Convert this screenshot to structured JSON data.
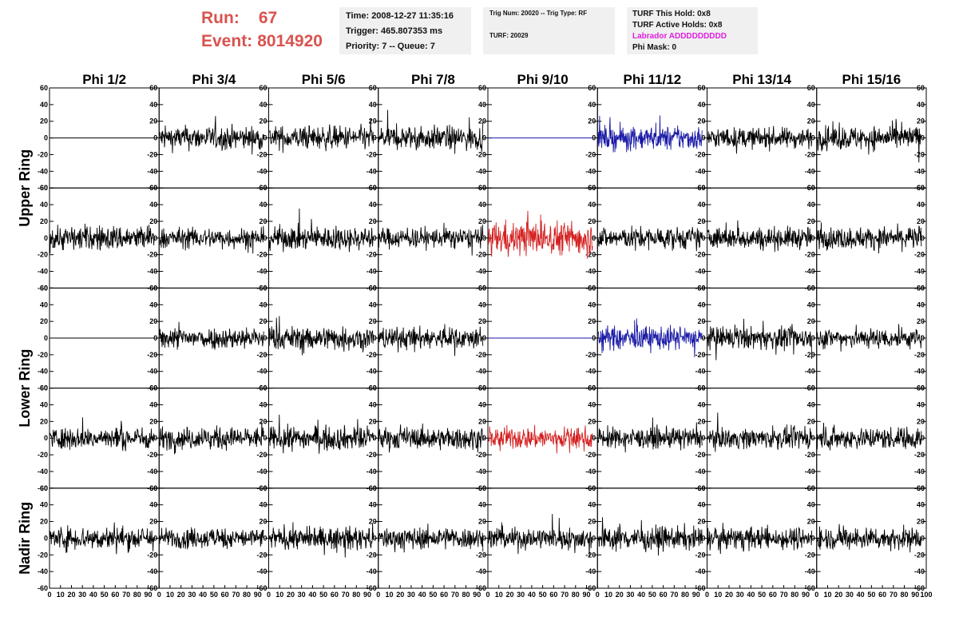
{
  "header": {
    "run_label": "Run:",
    "run_value": "67",
    "event_label": "Event:",
    "event_value": "8014920"
  },
  "info_time": {
    "time": "Time: 2008-12-27 11:35:16",
    "trigger": "Trigger: 465.807353 ms",
    "priority": "Priority: 7 -- Queue: 7"
  },
  "info_trig": {
    "trig": "Trig Num: 20020 -- Trig Type: RF",
    "turf": "TURF: 20029"
  },
  "info_turf": {
    "hold": "TURF This Hold: 0x8",
    "active": "TURF Active Holds: 0x8",
    "labrador": "Labrador ADDDDDDDDD",
    "phimask": "Phi Mask: 0"
  },
  "colors": {
    "header_red": "#d9534f",
    "info_bg": "#f0f0f0",
    "labrador_magenta": "#e020e0",
    "trace_black": "#000000",
    "trace_blue": "#1a1aa6",
    "trace_red": "#d42020"
  },
  "chart_data": {
    "type": "line",
    "columns": [
      "Phi 1/2",
      "Phi 3/4",
      "Phi 5/6",
      "Phi 7/8",
      "Phi 9/10",
      "Phi 11/12",
      "Phi 13/14",
      "Phi 15/16"
    ],
    "row_groups": [
      {
        "label": "Upper Ring",
        "rows": [
          0,
          1
        ]
      },
      {
        "label": "Lower Ring",
        "rows": [
          2,
          3
        ]
      },
      {
        "label": "Nadir Ring",
        "rows": [
          4
        ]
      }
    ],
    "xlim": [
      0,
      100
    ],
    "ylim": [
      -60,
      60
    ],
    "y_ticks": [
      60,
      40,
      20,
      0,
      -20,
      -40,
      -60
    ],
    "x_ticks": [
      0,
      10,
      20,
      30,
      40,
      50,
      60,
      70,
      80,
      90,
      100
    ],
    "x_tick_labels": [
      "0",
      "10",
      "20",
      "30",
      "40",
      "50",
      "60",
      "70",
      "80",
      "90",
      "100"
    ],
    "traces": [
      [
        "flat",
        "black",
        "black",
        "black",
        "flat-blue",
        "blue",
        "black",
        "black"
      ],
      [
        "black",
        "black",
        "black",
        "black",
        "red",
        "black",
        "black",
        "black"
      ],
      [
        "flat",
        "black",
        "black",
        "black",
        "flat-blue",
        "blue",
        "black",
        "black"
      ],
      [
        "black",
        "black",
        "black",
        "black",
        "red",
        "black",
        "black",
        "black"
      ],
      [
        "black",
        "black",
        "black",
        "black",
        "black",
        "black",
        "black",
        "black"
      ]
    ],
    "noise_amplitude": [
      [
        0,
        14,
        14,
        14,
        0,
        14,
        12,
        14
      ],
      [
        15,
        12,
        14,
        12,
        20,
        13,
        13,
        13
      ],
      [
        0,
        13,
        14,
        13,
        0,
        14,
        13,
        12
      ],
      [
        13,
        13,
        14,
        13,
        13,
        12,
        12,
        13
      ],
      [
        14,
        12,
        13,
        13,
        13,
        14,
        13,
        13
      ]
    ]
  }
}
